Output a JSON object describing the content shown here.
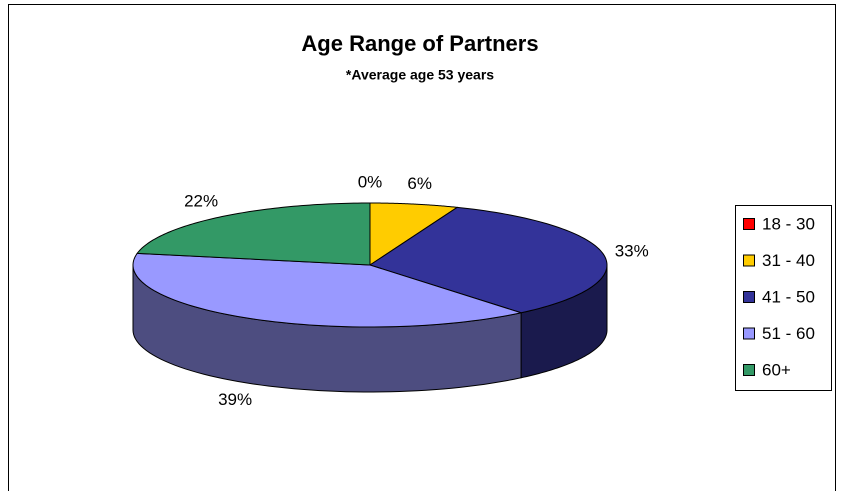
{
  "chart_data": {
    "type": "pie3d",
    "title": "Age Range of Partners",
    "subtitle": "*Average age 53 years",
    "categories": [
      "18 - 30",
      "31 - 40",
      "41 - 50",
      "51 - 60",
      "60+"
    ],
    "values": [
      0,
      6,
      33,
      39,
      22
    ],
    "value_labels": [
      "0%",
      "6%",
      "33%",
      "39%",
      "22%"
    ],
    "colors": [
      "#ff0000",
      "#ffcc00",
      "#333399",
      "#9999ff",
      "#339966"
    ],
    "legend": "right"
  }
}
